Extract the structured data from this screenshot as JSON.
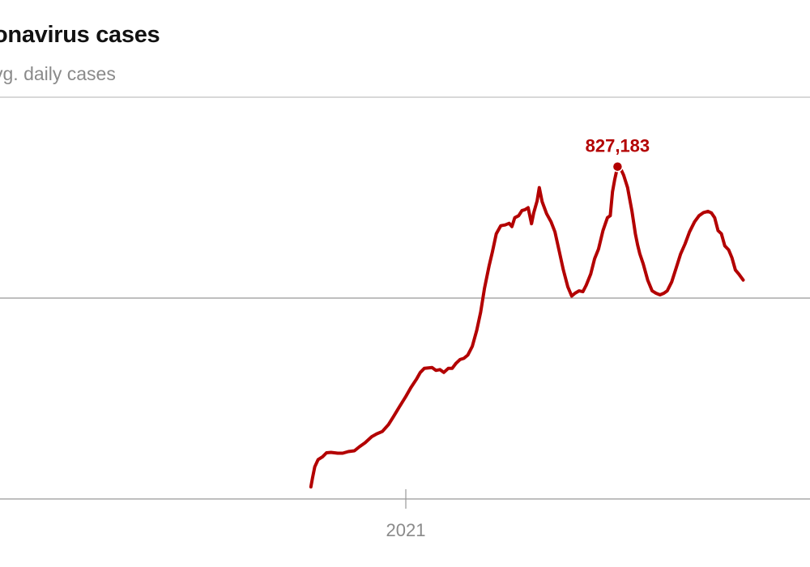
{
  "chart_data": {
    "type": "line",
    "title": "onavirus cases",
    "subtitle": "vg. daily cases",
    "xlabel": "",
    "ylabel": "",
    "x_tick_labels": [
      "2021"
    ],
    "y_tick_labels": [],
    "grid": true,
    "line_color": "#b30000",
    "annotation": {
      "label": "827,183",
      "x": "2022-01-15",
      "y": 827183
    },
    "ylim": [
      0,
      1000000
    ],
    "series": [
      {
        "values": [
          [
            "2020-07-15",
            30000
          ],
          [
            "2020-07-18",
            52000
          ],
          [
            "2020-07-22",
            80000
          ],
          [
            "2020-07-28",
            98000
          ],
          [
            "2020-08-05",
            105000
          ],
          [
            "2020-08-12",
            115000
          ],
          [
            "2020-08-20",
            116000
          ],
          [
            "2020-09-01",
            114000
          ],
          [
            "2020-09-10",
            114000
          ],
          [
            "2020-09-20",
            118000
          ],
          [
            "2020-10-01",
            120000
          ],
          [
            "2020-10-10",
            130000
          ],
          [
            "2020-10-20",
            140000
          ],
          [
            "2020-11-01",
            155000
          ],
          [
            "2020-11-10",
            162000
          ],
          [
            "2020-11-20",
            168000
          ],
          [
            "2020-12-01",
            185000
          ],
          [
            "2020-12-10",
            205000
          ],
          [
            "2020-12-20",
            228000
          ],
          [
            "2021-01-01",
            255000
          ],
          [
            "2021-01-10",
            277000
          ],
          [
            "2021-01-20",
            298000
          ],
          [
            "2021-01-27",
            315000
          ],
          [
            "2021-02-03",
            325000
          ],
          [
            "2021-02-10",
            326000
          ],
          [
            "2021-02-17",
            327000
          ],
          [
            "2021-02-24",
            320000
          ],
          [
            "2021-03-03",
            322000
          ],
          [
            "2021-03-10",
            315000
          ],
          [
            "2021-03-18",
            325000
          ],
          [
            "2021-03-25",
            325000
          ],
          [
            "2021-04-01",
            338000
          ],
          [
            "2021-04-08",
            347000
          ],
          [
            "2021-04-15",
            350000
          ],
          [
            "2021-04-22",
            358000
          ],
          [
            "2021-04-30",
            380000
          ],
          [
            "2021-05-08",
            420000
          ],
          [
            "2021-05-15",
            465000
          ],
          [
            "2021-05-22",
            525000
          ],
          [
            "2021-05-30",
            580000
          ],
          [
            "2021-06-05",
            615000
          ],
          [
            "2021-06-12",
            660000
          ],
          [
            "2021-06-20",
            680000
          ],
          [
            "2021-06-28",
            682000
          ],
          [
            "2021-07-05",
            686000
          ],
          [
            "2021-07-10",
            678000
          ],
          [
            "2021-07-15",
            700000
          ],
          [
            "2021-07-22",
            705000
          ],
          [
            "2021-07-28",
            718000
          ],
          [
            "2021-08-02",
            720000
          ],
          [
            "2021-08-08",
            725000
          ],
          [
            "2021-08-14",
            685000
          ],
          [
            "2021-08-18",
            712000
          ],
          [
            "2021-08-24",
            742000
          ],
          [
            "2021-08-28",
            775000
          ],
          [
            "2021-09-02",
            740000
          ],
          [
            "2021-09-10",
            710000
          ],
          [
            "2021-09-18",
            690000
          ],
          [
            "2021-09-25",
            665000
          ],
          [
            "2021-10-03",
            615000
          ],
          [
            "2021-10-10",
            570000
          ],
          [
            "2021-10-18",
            528000
          ],
          [
            "2021-10-25",
            505000
          ],
          [
            "2021-10-31",
            512000
          ],
          [
            "2021-11-07",
            518000
          ],
          [
            "2021-11-14",
            516000
          ],
          [
            "2021-11-20",
            532000
          ],
          [
            "2021-11-28",
            560000
          ],
          [
            "2021-12-05",
            598000
          ],
          [
            "2021-12-12",
            622000
          ],
          [
            "2021-12-20",
            668000
          ],
          [
            "2021-12-28",
            700000
          ],
          [
            "2022-01-02",
            705000
          ],
          [
            "2022-01-06",
            765000
          ],
          [
            "2022-01-10",
            795000
          ],
          [
            "2022-01-15",
            827183
          ],
          [
            "2022-01-20",
            824000
          ],
          [
            "2022-01-26",
            806000
          ],
          [
            "2022-02-02",
            775000
          ],
          [
            "2022-02-10",
            715000
          ],
          [
            "2022-02-16",
            660000
          ],
          [
            "2022-02-20",
            632000
          ],
          [
            "2022-02-24",
            610000
          ],
          [
            "2022-03-02",
            585000
          ],
          [
            "2022-03-10",
            545000
          ],
          [
            "2022-03-18",
            518000
          ],
          [
            "2022-03-25",
            512000
          ],
          [
            "2022-04-01",
            508000
          ],
          [
            "2022-04-08",
            512000
          ],
          [
            "2022-04-14",
            518000
          ],
          [
            "2022-04-22",
            540000
          ],
          [
            "2022-04-30",
            575000
          ],
          [
            "2022-05-08",
            610000
          ],
          [
            "2022-05-16",
            635000
          ],
          [
            "2022-05-24",
            665000
          ],
          [
            "2022-06-02",
            690000
          ],
          [
            "2022-06-10",
            705000
          ],
          [
            "2022-06-18",
            713000
          ],
          [
            "2022-06-26",
            716000
          ],
          [
            "2022-07-02",
            712000
          ],
          [
            "2022-07-08",
            700000
          ],
          [
            "2022-07-14",
            668000
          ],
          [
            "2022-07-20",
            660000
          ],
          [
            "2022-07-26",
            630000
          ],
          [
            "2022-08-02",
            620000
          ],
          [
            "2022-08-08",
            600000
          ],
          [
            "2022-08-14",
            570000
          ],
          [
            "2022-08-20",
            560000
          ],
          [
            "2022-08-28",
            545000
          ]
        ]
      }
    ]
  }
}
